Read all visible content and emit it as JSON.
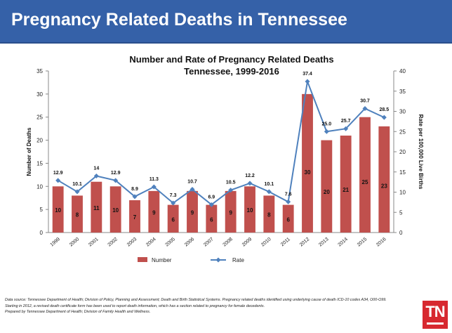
{
  "header": {
    "title": "Pregnancy Related Deaths in Tennessee"
  },
  "chart_data": {
    "type": "bar",
    "title": "Number and Rate of Pregnancy Related Deaths",
    "subtitle": "Tennessee, 1999-2016",
    "categories": [
      "1999",
      "2000",
      "2001",
      "2002",
      "2003",
      "2004",
      "2005",
      "2006",
      "2007",
      "2008",
      "2009",
      "2010",
      "2011",
      "2012",
      "2013",
      "2014",
      "2015",
      "2016"
    ],
    "series": [
      {
        "name": "Number",
        "type": "bar",
        "axis": "left",
        "color": "#c0504d",
        "values": [
          10,
          8,
          11,
          10,
          7,
          9,
          6,
          9,
          6,
          9,
          10,
          8,
          6,
          30,
          20,
          21,
          25,
          23
        ]
      },
      {
        "name": "Rate",
        "type": "line",
        "axis": "right",
        "color": "#4f81bd",
        "values": [
          12.9,
          10.1,
          14,
          12.9,
          8.9,
          11.3,
          7.3,
          10.7,
          6.9,
          10.5,
          12.2,
          10.1,
          7.6,
          37.4,
          25.0,
          25.7,
          30.7,
          28.5
        ],
        "labels": [
          "12.9",
          "10.1",
          "14",
          "12.9",
          "8.9",
          "11.3",
          "7.3",
          "10.7",
          "6.9",
          "10.5",
          "12.2",
          "10.1",
          "7.6",
          "37.4",
          "25.0",
          "25.7",
          "30.7",
          "28.5"
        ]
      }
    ],
    "ylabel": "Number of Deaths",
    "ylabel_right": "Rate per 100,000 Live Births",
    "ylim": [
      0,
      35
    ],
    "ylim_right": [
      0,
      40
    ],
    "yticks": [
      "0",
      "5",
      "10",
      "15",
      "20",
      "25",
      "30",
      "35"
    ],
    "yticks_right": [
      "0",
      "5",
      "10",
      "15",
      "20",
      "25",
      "30",
      "35",
      "40"
    ],
    "grid": false,
    "legend_position": "bottom"
  },
  "footnotes": [
    "Data source: Tennessee Department of Health; Division of Policy, Planning and Assessment; Death and Birth Statistical Systems. Pregnancy related deaths identified using underlying cause of death ICD-10 codes A34, O00-O99.",
    "Starting in 2012, a revised death certificate form has been  used to report death information, which has a section related to pregnancy for female decedents.",
    "Prepared by Tennessee Department of Health; Division of Family Health and Wellness."
  ],
  "logo": {
    "text": "TN",
    "color": "#d7282f"
  }
}
